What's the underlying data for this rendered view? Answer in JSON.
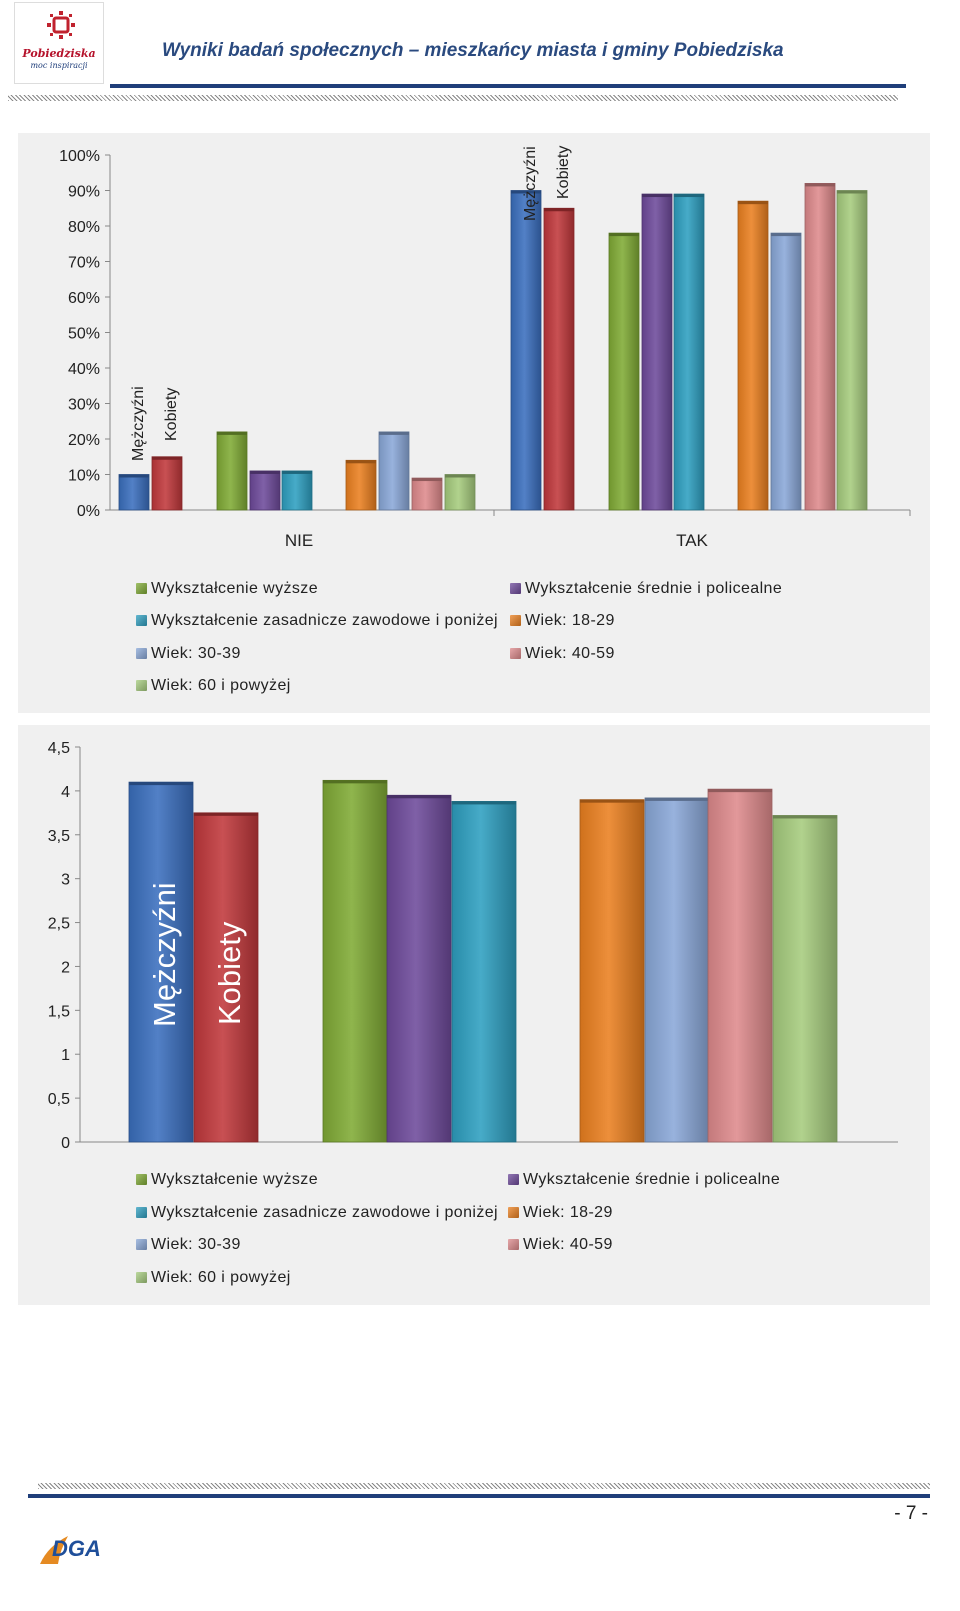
{
  "header": {
    "title": "Wyniki badań społecznych – mieszkańcy miasta i gminy Pobiedziska",
    "logo_text": "Pobiedziska",
    "logo_sub": "moc inspiracji"
  },
  "footer": {
    "logo_text": "DGA",
    "page_number": "- 7 -"
  },
  "colors": {
    "Mężczyźni": "#3a6fbe",
    "Kobiety": "#c0383b",
    "Wykształcenie wyższe": "#80ab35",
    "Wykształcenie średnie i policealne": "#6e4a9b",
    "Wykształcenie zasadnicze zawodowe i poniżej": "#2e9fc0",
    "Wiek: 18-29": "#eb8020",
    "Wiek: 30-39": "#8aa8d8",
    "Wiek: 40-59": "#de8a8c",
    "Wiek: 60 i powyżej": "#a6cc7e"
  },
  "chart_data": [
    {
      "type": "bar",
      "categories": [
        "NIE",
        "TAK"
      ],
      "yticks": [
        "0%",
        "10%",
        "20%",
        "30%",
        "40%",
        "50%",
        "60%",
        "70%",
        "80%",
        "90%",
        "100%"
      ],
      "ylim": [
        0,
        100
      ],
      "grid": false,
      "legend_position": "bottom",
      "bar_labels": [
        "Mężczyźni",
        "Kobiety"
      ],
      "legend": [
        "Wykształcenie wyższe",
        "Wykształcenie średnie i policealne",
        "Wykształcenie zasadnicze zawodowe i poniżej",
        "Wiek: 18-29",
        "Wiek: 30-39",
        "Wiek: 40-59",
        "Wiek: 60 i powyżej"
      ],
      "series": [
        {
          "name": "Mężczyźni",
          "values": [
            10,
            90
          ]
        },
        {
          "name": "Kobiety",
          "values": [
            15,
            85
          ]
        },
        {
          "name": "Wykształcenie wyższe",
          "values": [
            22,
            78
          ]
        },
        {
          "name": "Wykształcenie średnie i policealne",
          "values": [
            11,
            89
          ]
        },
        {
          "name": "Wykształcenie zasadnicze zawodowe i poniżej",
          "values": [
            11,
            89
          ]
        },
        {
          "name": "Wiek: 18-29",
          "values": [
            14,
            87
          ]
        },
        {
          "name": "Wiek: 30-39",
          "values": [
            22,
            78
          ]
        },
        {
          "name": "Wiek: 40-59",
          "values": [
            9,
            92
          ]
        },
        {
          "name": "Wiek: 60 i powyżej",
          "values": [
            10,
            90
          ]
        }
      ]
    },
    {
      "type": "bar",
      "categories": [
        ""
      ],
      "yticks": [
        "0",
        "0,5",
        "1",
        "1,5",
        "2",
        "2,5",
        "3",
        "3,5",
        "4",
        "4,5"
      ],
      "ylim": [
        0,
        4.5
      ],
      "grid": false,
      "legend_position": "bottom",
      "bar_labels": [
        "Mężczyźni",
        "Kobiety"
      ],
      "legend": [
        "Wykształcenie wyższe",
        "Wykształcenie średnie i policealne",
        "Wykształcenie zasadnicze zawodowe i poniżej",
        "Wiek: 18-29",
        "Wiek: 30-39",
        "Wiek: 40-59",
        "Wiek: 60 i powyżej"
      ],
      "series": [
        {
          "name": "Mężczyźni",
          "values": [
            4.1
          ]
        },
        {
          "name": "Kobiety",
          "values": [
            3.75
          ]
        },
        {
          "name": "Wykształcenie wyższe",
          "values": [
            4.12
          ]
        },
        {
          "name": "Wykształcenie średnie i policealne",
          "values": [
            3.95
          ]
        },
        {
          "name": "Wykształcenie zasadnicze zawodowe i poniżej",
          "values": [
            3.88
          ]
        },
        {
          "name": "Wiek: 18-29",
          "values": [
            3.9
          ]
        },
        {
          "name": "Wiek: 30-39",
          "values": [
            3.92
          ]
        },
        {
          "name": "Wiek: 40-59",
          "values": [
            4.02
          ]
        },
        {
          "name": "Wiek: 60 i powyżej",
          "values": [
            3.72
          ]
        }
      ]
    }
  ]
}
